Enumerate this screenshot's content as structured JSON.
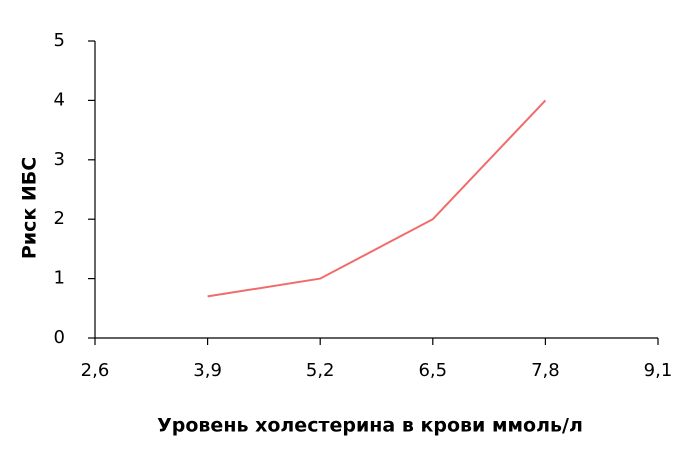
{
  "chart_data": {
    "type": "line",
    "x_label": "Уровень холестерина в крови ммоль/л",
    "y_label": "Риск ИБС",
    "x": [
      3.9,
      5.2,
      6.5,
      7.8
    ],
    "values": [
      0.7,
      1,
      2,
      4
    ],
    "color": "#f26b6b",
    "xlim": [
      2.6,
      9.1
    ],
    "xticks": [
      {
        "value": 2.6,
        "label": "2,6"
      },
      {
        "value": 3.9,
        "label": "3,9"
      },
      {
        "value": 5.2,
        "label": "5,2"
      },
      {
        "value": 6.5,
        "label": "6,5"
      },
      {
        "value": 7.8,
        "label": "7,8"
      },
      {
        "value": 9.1,
        "label": "9,1"
      }
    ],
    "ylim": [
      0,
      5
    ],
    "yticks": [
      0,
      1,
      2,
      3,
      4,
      5
    ]
  }
}
